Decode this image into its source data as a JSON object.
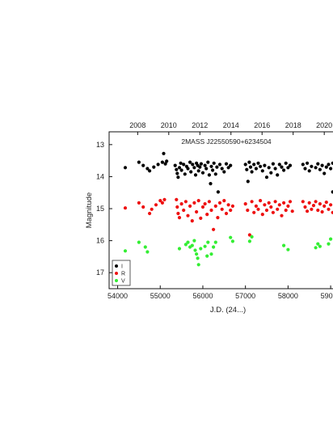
{
  "chart_data": {
    "type": "scatter",
    "title": "2MASS J22550590+6234504",
    "xlabel": "J.D. (24...)",
    "ylabel": "Magnitude",
    "xlim": [
      53800,
      59150
    ],
    "ylim": [
      17.5,
      12.6
    ],
    "y_inverted": true,
    "x_ticks": [
      54000,
      55000,
      56000,
      57000,
      58000,
      59000
    ],
    "x_tick_labels": [
      "54000",
      "55000",
      "56000",
      "57000",
      "58000",
      "59000"
    ],
    "y_ticks": [
      13,
      14,
      15,
      16,
      17
    ],
    "y_tick_labels": [
      "13",
      "14",
      "15",
      "16",
      "17"
    ],
    "top_ticks": [
      54470,
      55200,
      55930,
      56660,
      57390,
      58120,
      58850
    ],
    "top_tick_labels": [
      "2008",
      "2010",
      "2012",
      "2014",
      "2016",
      "2018",
      "2020"
    ],
    "grid": false,
    "legend_position": "bottom-left",
    "series": [
      {
        "name": "I",
        "color": "#000000",
        "points": [
          [
            54180,
            13.72
          ],
          [
            54500,
            13.55
          ],
          [
            54600,
            13.65
          ],
          [
            54700,
            13.75
          ],
          [
            54750,
            13.82
          ],
          [
            54850,
            13.7
          ],
          [
            54950,
            13.62
          ],
          [
            55050,
            13.55
          ],
          [
            55080,
            13.28
          ],
          [
            55120,
            13.6
          ],
          [
            55150,
            13.52
          ],
          [
            55350,
            13.65
          ],
          [
            55380,
            13.78
          ],
          [
            55400,
            13.9
          ],
          [
            55420,
            14.02
          ],
          [
            55450,
            13.72
          ],
          [
            55480,
            13.58
          ],
          [
            55500,
            13.8
          ],
          [
            55550,
            13.62
          ],
          [
            55580,
            13.92
          ],
          [
            55620,
            13.68
          ],
          [
            55650,
            13.75
          ],
          [
            55700,
            13.55
          ],
          [
            55720,
            13.85
          ],
          [
            55760,
            13.62
          ],
          [
            55800,
            13.72
          ],
          [
            55830,
            13.95
          ],
          [
            55850,
            13.58
          ],
          [
            55880,
            13.65
          ],
          [
            55900,
            13.82
          ],
          [
            55930,
            13.7
          ],
          [
            55960,
            13.6
          ],
          [
            56000,
            13.88
          ],
          [
            56050,
            13.65
          ],
          [
            56080,
            13.75
          ],
          [
            56120,
            13.55
          ],
          [
            56150,
            13.95
          ],
          [
            56180,
            14.22
          ],
          [
            56200,
            13.68
          ],
          [
            56230,
            13.8
          ],
          [
            56260,
            13.58
          ],
          [
            56300,
            13.92
          ],
          [
            56330,
            13.7
          ],
          [
            56360,
            14.48
          ],
          [
            56400,
            13.62
          ],
          [
            56450,
            13.75
          ],
          [
            56500,
            13.85
          ],
          [
            56550,
            13.6
          ],
          [
            56600,
            13.72
          ],
          [
            56650,
            13.65
          ],
          [
            57000,
            13.62
          ],
          [
            57030,
            13.78
          ],
          [
            57060,
            14.15
          ],
          [
            57090,
            13.55
          ],
          [
            57120,
            13.7
          ],
          [
            57150,
            13.85
          ],
          [
            57200,
            13.62
          ],
          [
            57250,
            13.75
          ],
          [
            57300,
            13.58
          ],
          [
            57350,
            13.68
          ],
          [
            57400,
            13.82
          ],
          [
            57450,
            13.65
          ],
          [
            57500,
            14.02
          ],
          [
            57550,
            13.72
          ],
          [
            57600,
            13.88
          ],
          [
            57650,
            13.6
          ],
          [
            57700,
            13.75
          ],
          [
            57750,
            13.95
          ],
          [
            57800,
            13.62
          ],
          [
            57850,
            13.7
          ],
          [
            57900,
            13.8
          ],
          [
            57950,
            13.58
          ],
          [
            58000,
            13.72
          ],
          [
            58050,
            13.65
          ],
          [
            58350,
            13.62
          ],
          [
            58400,
            13.75
          ],
          [
            58450,
            13.58
          ],
          [
            58500,
            13.82
          ],
          [
            58550,
            13.68
          ],
          [
            58650,
            13.72
          ],
          [
            58700,
            13.6
          ],
          [
            58750,
            13.78
          ],
          [
            58800,
            13.65
          ],
          [
            58850,
            13.9
          ],
          [
            58900,
            13.7
          ],
          [
            58950,
            13.62
          ],
          [
            59000,
            13.75
          ],
          [
            59050,
            13.58
          ],
          [
            59100,
            13.68
          ],
          [
            59050,
            14.48
          ]
        ]
      },
      {
        "name": "R",
        "color": "#ee1111",
        "points": [
          [
            54180,
            14.98
          ],
          [
            54500,
            14.82
          ],
          [
            54600,
            14.95
          ],
          [
            54750,
            15.15
          ],
          [
            54800,
            15.02
          ],
          [
            54900,
            14.88
          ],
          [
            55000,
            14.75
          ],
          [
            55050,
            14.82
          ],
          [
            55100,
            14.72
          ],
          [
            55380,
            14.72
          ],
          [
            55400,
            14.95
          ],
          [
            55420,
            15.15
          ],
          [
            55450,
            15.28
          ],
          [
            55500,
            14.85
          ],
          [
            55550,
            15.05
          ],
          [
            55600,
            14.78
          ],
          [
            55650,
            15.22
          ],
          [
            55700,
            14.92
          ],
          [
            55750,
            15.38
          ],
          [
            55800,
            14.82
          ],
          [
            55850,
            15.1
          ],
          [
            55900,
            14.75
          ],
          [
            55950,
            15.3
          ],
          [
            56000,
            14.95
          ],
          [
            56050,
            14.85
          ],
          [
            56100,
            15.18
          ],
          [
            56150,
            14.78
          ],
          [
            56200,
            15.05
          ],
          [
            56250,
            15.65
          ],
          [
            56300,
            14.92
          ],
          [
            56350,
            15.28
          ],
          [
            56400,
            14.82
          ],
          [
            56450,
            15.02
          ],
          [
            56500,
            14.75
          ],
          [
            56550,
            15.15
          ],
          [
            56600,
            14.88
          ],
          [
            56650,
            15.05
          ],
          [
            56700,
            14.92
          ],
          [
            57000,
            14.85
          ],
          [
            57050,
            15.05
          ],
          [
            57100,
            15.82
          ],
          [
            57150,
            14.78
          ],
          [
            57200,
            15.12
          ],
          [
            57250,
            14.92
          ],
          [
            57300,
            15.02
          ],
          [
            57350,
            14.75
          ],
          [
            57400,
            15.18
          ],
          [
            57450,
            14.88
          ],
          [
            57500,
            15.05
          ],
          [
            57550,
            14.82
          ],
          [
            57600,
            14.95
          ],
          [
            57650,
            15.12
          ],
          [
            57700,
            14.78
          ],
          [
            57750,
            15.02
          ],
          [
            57800,
            14.88
          ],
          [
            57850,
            15.22
          ],
          [
            57900,
            14.82
          ],
          [
            57950,
            15.05
          ],
          [
            58000,
            14.92
          ],
          [
            58050,
            14.78
          ],
          [
            58100,
            15.08
          ],
          [
            58350,
            14.78
          ],
          [
            58400,
            14.95
          ],
          [
            58450,
            15.08
          ],
          [
            58500,
            14.82
          ],
          [
            58550,
            15.02
          ],
          [
            58600,
            14.9
          ],
          [
            58650,
            14.78
          ],
          [
            58700,
            15.05
          ],
          [
            58750,
            14.85
          ],
          [
            58800,
            15.1
          ],
          [
            58850,
            14.92
          ],
          [
            58900,
            14.8
          ],
          [
            58950,
            15.02
          ],
          [
            59000,
            14.88
          ],
          [
            59050,
            15.12
          ],
          [
            59100,
            14.95
          ]
        ]
      },
      {
        "name": "V",
        "color": "#33ee33",
        "points": [
          [
            54180,
            16.32
          ],
          [
            54500,
            16.05
          ],
          [
            54650,
            16.2
          ],
          [
            54700,
            16.35
          ],
          [
            55450,
            16.25
          ],
          [
            55600,
            16.12
          ],
          [
            55650,
            16.05
          ],
          [
            55700,
            16.2
          ],
          [
            55750,
            16.15
          ],
          [
            55800,
            16.0
          ],
          [
            55820,
            16.3
          ],
          [
            55850,
            16.42
          ],
          [
            55880,
            16.55
          ],
          [
            55900,
            16.75
          ],
          [
            55950,
            16.25
          ],
          [
            56050,
            16.18
          ],
          [
            56100,
            16.48
          ],
          [
            56120,
            16.05
          ],
          [
            56200,
            16.42
          ],
          [
            56250,
            16.2
          ],
          [
            56300,
            16.05
          ],
          [
            56650,
            15.9
          ],
          [
            56700,
            16.02
          ],
          [
            57100,
            16.02
          ],
          [
            57150,
            15.88
          ],
          [
            57900,
            16.15
          ],
          [
            58000,
            16.28
          ],
          [
            58650,
            16.22
          ],
          [
            58700,
            16.1
          ],
          [
            58750,
            16.18
          ],
          [
            58950,
            16.1
          ],
          [
            59000,
            15.95
          ]
        ]
      }
    ]
  }
}
